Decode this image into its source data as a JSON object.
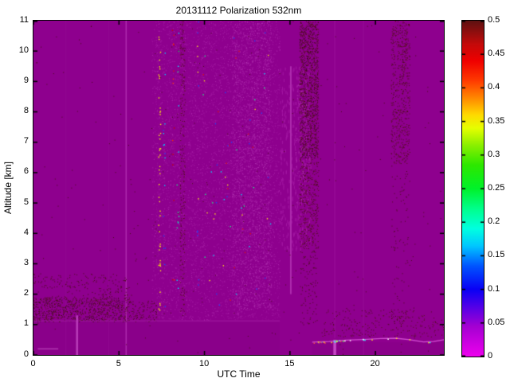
{
  "chart_data": {
    "type": "heatmap",
    "title": "20131112 Polarization 532nm",
    "xlabel": "UTC Time",
    "ylabel": "Altitude [km]",
    "xlim": [
      0,
      24
    ],
    "ylim": [
      0,
      11
    ],
    "xticks": [
      0,
      5,
      10,
      15,
      20
    ],
    "x_tick_labels": [
      "0",
      "5",
      "10",
      "15",
      "20"
    ],
    "yticks": [
      0,
      1,
      2,
      3,
      4,
      5,
      6,
      7,
      8,
      9,
      10,
      11
    ],
    "y_tick_labels": [
      "0",
      "1",
      "2",
      "3",
      "4",
      "5",
      "6",
      "7",
      "8",
      "9",
      "10",
      "11"
    ],
    "grid": false,
    "figure_background": "#FFFFFF",
    "axis_color": "#000000",
    "background_color": "#8E008E",
    "colorbar": {
      "position": "right",
      "min": 0,
      "max": 0.5,
      "ticks": [
        0,
        0.05,
        0.1,
        0.15,
        0.2,
        0.25,
        0.3,
        0.35,
        0.4,
        0.45,
        0.5
      ],
      "tick_labels": [
        "0",
        "0.05",
        "0.1",
        "0.15",
        "0.2",
        "0.25",
        "0.3",
        "0.35",
        "0.4",
        "0.45",
        "0.5"
      ],
      "gradient_stops": [
        [
          0.0,
          "#EE00EE"
        ],
        [
          0.045,
          "#A400D2"
        ],
        [
          0.075,
          "#5000E8"
        ],
        [
          0.1,
          "#0A00F5"
        ],
        [
          0.135,
          "#0055FF"
        ],
        [
          0.165,
          "#00C8FF"
        ],
        [
          0.19,
          "#00FFE1"
        ],
        [
          0.22,
          "#00FF8C"
        ],
        [
          0.25,
          "#00F22A"
        ],
        [
          0.285,
          "#2DE800"
        ],
        [
          0.315,
          "#8CF000"
        ],
        [
          0.34,
          "#E6FF00"
        ],
        [
          0.36,
          "#FFD900"
        ],
        [
          0.385,
          "#FF8800"
        ],
        [
          0.41,
          "#FF3C00"
        ],
        [
          0.44,
          "#F00000"
        ],
        [
          0.465,
          "#C40A0A"
        ],
        [
          0.5,
          "#5E1212"
        ]
      ]
    },
    "features": [
      {
        "name": "below-boundary-layer-region",
        "kind": "rect",
        "x": [
          0,
          14.4
        ],
        "y": [
          0,
          1.12
        ],
        "color": "#8A008A"
      },
      {
        "name": "below-aerosol-line-region",
        "kind": "rect",
        "x": [
          16.3,
          24
        ],
        "y": [
          0,
          0.42
        ],
        "color": "#8A008A"
      },
      {
        "name": "faint-column-1",
        "kind": "vline",
        "x": 1.9,
        "y": [
          0,
          11
        ],
        "color": "#920A92",
        "w": 1
      },
      {
        "name": "faint-column-2",
        "kind": "vline",
        "x": 4.4,
        "y": [
          0,
          11
        ],
        "color": "#920A92",
        "w": 1
      },
      {
        "name": "bright-line-0525",
        "kind": "vline",
        "x": 5.42,
        "y": [
          0,
          11
        ],
        "color": "#AE2AAE",
        "w": 1.5
      },
      {
        "name": "faint-line-1920",
        "kind": "vline",
        "x": 19.3,
        "y": [
          0,
          11
        ],
        "color": "#960C96",
        "w": 1
      },
      {
        "name": "faint-line-1737",
        "kind": "vline",
        "x": 17.62,
        "y": [
          0.55,
          11
        ],
        "color": "#9A109A",
        "w": 1
      },
      {
        "name": "daytime-noise-region",
        "kind": "speckle",
        "x": [
          6.9,
          14.4
        ],
        "y": [
          1.15,
          11
        ],
        "density": 0.1,
        "size": 1,
        "colors": [
          "#A014A0",
          "#AC28AC",
          "#9A0E9A"
        ]
      },
      {
        "name": "daytime-noise-bright",
        "kind": "speckle",
        "x": [
          11.6,
          13.9
        ],
        "y": [
          1.5,
          11
        ],
        "density": 0.1,
        "size": 1,
        "colors": [
          "#B237B2",
          "#A81EA8"
        ]
      },
      {
        "name": "bright-wisps",
        "kind": "speckle",
        "x": [
          14.4,
          16.2
        ],
        "y": [
          3.5,
          9.5
        ],
        "density": 0.035,
        "size": 1,
        "sizey": 4,
        "colors": [
          "#A216A2"
        ]
      },
      {
        "name": "boundary-layer-speckles",
        "kind": "speckle",
        "x": [
          0,
          5.6
        ],
        "y": [
          1.1,
          1.9
        ],
        "density": 0.22,
        "size": 1,
        "colors": [
          "#4A0D16",
          "#551414",
          "#3F0B20"
        ]
      },
      {
        "name": "boundary-layer-sparse-top",
        "kind": "speckle",
        "x": [
          0,
          5.6
        ],
        "y": [
          1.9,
          2.7
        ],
        "density": 0.045,
        "size": 1,
        "colors": [
          "#4A0D16"
        ]
      },
      {
        "name": "boundary-layer-tail",
        "kind": "speckle",
        "x": [
          5.6,
          7.2
        ],
        "y": [
          1.1,
          1.8
        ],
        "density": 0.1,
        "size": 1,
        "colors": [
          "#4A0D16"
        ]
      },
      {
        "name": "boundary-layer-top-line",
        "kind": "hline",
        "y": 1.12,
        "x": [
          0,
          14.4
        ],
        "color": "#A01CA0",
        "w": 1
      },
      {
        "name": "yellow-dot-column",
        "kind": "dotcol",
        "x": 7.35,
        "y": [
          1.2,
          11
        ],
        "n": 48,
        "colors": [
          "#FFE318",
          "#FFF200"
        ]
      },
      {
        "name": "blue-dot-column",
        "kind": "dotcol",
        "x": 7.62,
        "y": [
          1.5,
          11
        ],
        "n": 16,
        "colors": [
          "#2244FF",
          "#00CCFF"
        ]
      },
      {
        "name": "red-dot-column",
        "kind": "dotcol",
        "x": 8.15,
        "y": [
          1.5,
          11
        ],
        "n": 14,
        "colors": [
          "#E01010",
          "#FF3300",
          "#CC0000"
        ]
      },
      {
        "name": "cyan-dot-column",
        "kind": "dotcol",
        "x": 8.42,
        "y": [
          1.5,
          11
        ],
        "n": 14,
        "colors": [
          "#00DDFF",
          "#22EE88"
        ]
      },
      {
        "name": "dark-dot-column-0835",
        "kind": "speckle",
        "x": [
          8.55,
          8.85
        ],
        "y": [
          1.3,
          11
        ],
        "density": 0.1,
        "size": 1,
        "colors": [
          "#4A0D16",
          "#551414"
        ]
      },
      {
        "name": "mixed-dot-column",
        "kind": "dotcol",
        "x": 9.58,
        "y": [
          1.5,
          11
        ],
        "n": 12,
        "colors": [
          "#2244FF",
          "#FFE318"
        ]
      },
      {
        "name": "scattered-colored-dots",
        "kind": "speckle",
        "x": [
          9.8,
          14.0
        ],
        "y": [
          1.5,
          11
        ],
        "density": 0.002,
        "size": 1.4,
        "colors": [
          "#2244FF",
          "#00DDFF",
          "#FFE318",
          "#E01010",
          "#22EE88"
        ]
      },
      {
        "name": "bright-line-1505",
        "kind": "vline",
        "x": 15.05,
        "y": [
          2,
          9.5
        ],
        "color": "#AE2CAE",
        "w": 2
      },
      {
        "name": "dark-band-upper",
        "kind": "speckle",
        "x": [
          15.55,
          16.65
        ],
        "y": [
          6.5,
          11
        ],
        "density": 0.3,
        "size": 1,
        "colors": [
          "#4A0D16",
          "#551414",
          "#3F0B20"
        ]
      },
      {
        "name": "dark-band-mid",
        "kind": "speckle",
        "x": [
          15.55,
          16.65
        ],
        "y": [
          3.5,
          6.5
        ],
        "density": 0.14,
        "size": 1,
        "colors": [
          "#4A0D16",
          "#551414"
        ]
      },
      {
        "name": "dark-band-lower",
        "kind": "speckle",
        "x": [
          15.6,
          16.6
        ],
        "y": [
          1.0,
          3.5
        ],
        "density": 0.05,
        "size": 1,
        "colors": [
          "#4A0D16"
        ]
      },
      {
        "name": "bright-specks-in-band",
        "kind": "speckle",
        "x": [
          15.3,
          16.1
        ],
        "y": [
          5,
          9
        ],
        "density": 0.05,
        "size": 1,
        "colors": [
          "#B237B2"
        ]
      },
      {
        "name": "dark-column-2140-upper",
        "kind": "speckle",
        "x": [
          20.9,
          22.0
        ],
        "y": [
          6.3,
          11
        ],
        "density": 0.13,
        "size": 1,
        "colors": [
          "#4A0D16",
          "#551414"
        ]
      },
      {
        "name": "dark-column-2140-lower",
        "kind": "speckle",
        "x": [
          20.9,
          22.0
        ],
        "y": [
          1.0,
          6.3
        ],
        "density": 0.018,
        "size": 1,
        "colors": [
          "#4A0D16"
        ]
      },
      {
        "name": "bottom-right-dark-dots",
        "kind": "speckle",
        "x": [
          16.8,
          24
        ],
        "y": [
          0.6,
          1.5
        ],
        "density": 0.045,
        "size": 1,
        "colors": [
          "#4A0D16",
          "#551414"
        ]
      },
      {
        "name": "global-sparse-dots",
        "kind": "speckle",
        "x": [
          0,
          24
        ],
        "y": [
          0,
          11
        ],
        "density": 0.0012,
        "size": 1,
        "colors": [
          "#4A0D16"
        ]
      },
      {
        "name": "short-bright-line-0233",
        "kind": "vline",
        "x": 2.55,
        "y": [
          0,
          1.3
        ],
        "color": "#BA3CBA",
        "w": 2.5
      },
      {
        "name": "short-bright-line-1737",
        "kind": "vline",
        "x": 17.62,
        "y": [
          0,
          0.5
        ],
        "color": "#C648C6",
        "w": 3.5
      },
      {
        "name": "bottom-left-dash",
        "kind": "hline",
        "y": 0.2,
        "x": [
          0.25,
          1.45
        ],
        "color": "#B237B2",
        "w": 1.5
      },
      {
        "name": "thin-aerosol-line",
        "kind": "wavyline",
        "points": [
          [
            16.3,
            0.42
          ],
          [
            17.3,
            0.44
          ],
          [
            18.3,
            0.49
          ],
          [
            19.3,
            0.51
          ],
          [
            20.3,
            0.54
          ],
          [
            21.2,
            0.55
          ],
          [
            22.0,
            0.5
          ],
          [
            22.8,
            0.43
          ],
          [
            23.4,
            0.44
          ],
          [
            24,
            0.5
          ]
        ],
        "color": "#D24FD2",
        "w": 1.3
      },
      {
        "name": "aerosol-line-colored-dots",
        "kind": "linedots",
        "x": [
          16.35,
          18.2
        ],
        "n": 22,
        "colors": [
          "#33FFFF",
          "#44FF77",
          "#4466FF",
          "#FFFFFF",
          "#FF5544",
          "#FFE318"
        ]
      },
      {
        "name": "aerosol-line-sparse-dots",
        "kind": "linedots",
        "x": [
          18.2,
          24
        ],
        "n": 10,
        "colors": [
          "#FFFFFF",
          "#33FFFF",
          "#FFE318"
        ]
      }
    ]
  }
}
